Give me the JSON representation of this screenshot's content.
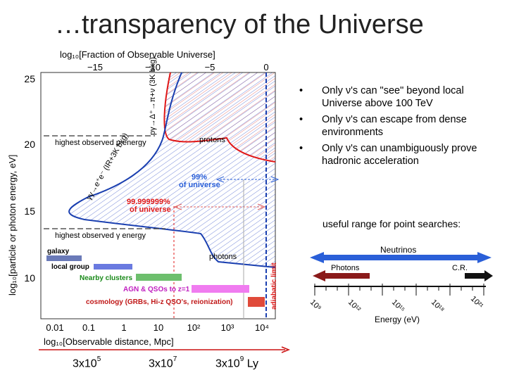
{
  "title": "…transparency of the Universe",
  "figure": {
    "top_axis_label": "log₁₀[Fraction of Observable Universe]",
    "top_ticks": [
      "−15",
      "−10",
      "−5",
      "0"
    ],
    "left_axis_label": "log₁₀[particle or photon energy, eV]",
    "left_ticks": [
      "25",
      "20",
      "15",
      "10"
    ],
    "bottom_axis_label": "log₁₀[Observable distance, Mpc]",
    "bottom_ticks": [
      "0.01",
      "0.1",
      "1",
      "10",
      "10²",
      "10³",
      "10⁴"
    ],
    "process_top": "pγ→Δ⁺→π+ν (3K bkg)",
    "process_left": "γγ→e⁺e⁻ (IR+3K bkg)",
    "label_protons": "protons",
    "label_photons": "photons",
    "label_highest_p": "highest observed p energy",
    "label_highest_gamma": "highest observed γ energy",
    "label_99": "99%",
    "label_99_sub": "of universe",
    "label_99999": "99.999999%",
    "label_99999_sub": "of universe",
    "label_adiabatic": "adiabatic limit",
    "boxes": [
      {
        "label": "galaxy",
        "color": "#6a7ab8"
      },
      {
        "label": "local group",
        "color": "#6a7ae0"
      },
      {
        "label": "Nearby clusters",
        "color": "#6dbf6d"
      },
      {
        "label": "AGN & QSOs to z=1",
        "color": "#f07cf0"
      },
      {
        "label": "cosmology (GRBs, Hi-z QSO's, reionization)",
        "color": "#e04a3a"
      }
    ]
  },
  "bullets": [
    "Only ν's can \"see\" beyond local Universe above 100 TeV",
    "Only ν's can escape from dense environments",
    "Only ν's can unambiguously prove hadronic acceleration"
  ],
  "useful_range": "useful range for point searches:",
  "spectrum": {
    "neutrinos": "Neutrinos",
    "photons": "Photons",
    "cr": "C.R.",
    "ticks": [
      "10⁹",
      "10¹²",
      "10¹⁵",
      "10¹⁸",
      "10²¹"
    ],
    "xlabel": "Energy (eV)"
  },
  "ly_labels": [
    {
      "base": "3x10",
      "exp": "5",
      "suffix": ""
    },
    {
      "base": "3x10",
      "exp": "7",
      "suffix": ""
    },
    {
      "base": "3x10",
      "exp": "9",
      "suffix": " Ly"
    }
  ],
  "colors": {
    "proton_curve": "#e01818",
    "photon_curve": "#1a3fb0",
    "arrow_blue": "#2a5fd8",
    "arrow_red": "#8a1a1a",
    "baseline": "#cc1111"
  }
}
